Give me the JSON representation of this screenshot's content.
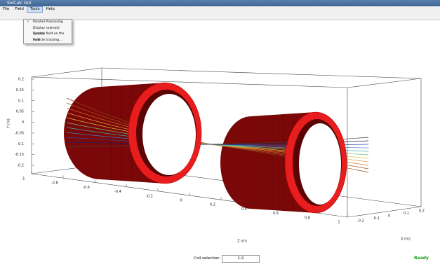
{
  "window": {
    "title": "SolCalc GUI"
  },
  "menu": [
    "File",
    "Field",
    "Tools",
    "Help"
  ],
  "tools_menu": [
    {
      "label": "Parallel Processing",
      "checked": true
    },
    {
      "label": "Display solenoid system",
      "checked": false
    },
    {
      "label": "Display field on the coils",
      "checked": false
    },
    {
      "label": "Particle tracking...",
      "checked": false
    }
  ],
  "axes": {
    "y_ticks": [
      "0.2",
      "0.15",
      "0.1",
      "0.05",
      "0",
      "-0.05",
      "-0.1",
      "-0.15",
      "-0.2"
    ],
    "z_ticks": [
      "-1",
      "-0.8",
      "-0.6",
      "-0.4",
      "-0.2",
      "0",
      "0.2",
      "0.4",
      "0.6",
      "0.8",
      "1"
    ],
    "x_ticks": [
      "-0.2",
      "-0.1",
      "0",
      "0.1",
      "0.2"
    ],
    "y_label": "Y (m)",
    "z_label": "Z (m)",
    "x_label": "X (m)"
  },
  "coil_selection": {
    "label": "Coil selection",
    "value": "1:2"
  },
  "status": "Ready"
}
